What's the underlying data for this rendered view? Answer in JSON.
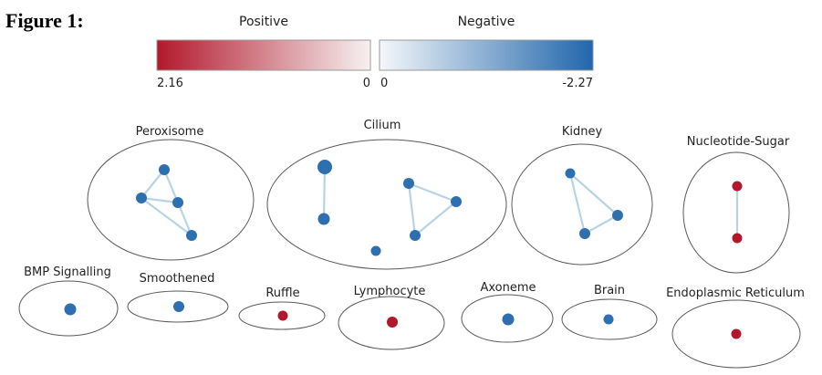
{
  "figure_title": "Figure 1:",
  "legend": {
    "positive": {
      "title": "Positive",
      "max_label": "2.16",
      "min_label": "0",
      "color_strong": "#b2182b",
      "color_weak": "#f7f1f1"
    },
    "negative": {
      "title": "Negative",
      "min_label": "0",
      "max_label": "-2.27",
      "color_weak": "#f4f7fa",
      "color_strong": "#2166ac"
    }
  },
  "colors": {
    "positive_node": "#b2182b",
    "negative_node": "#2e6fb0",
    "edge": "#b6d4e4",
    "ellipse_stroke": "#5a5a5a"
  },
  "groups": [
    {
      "id": "peroxisome",
      "label": "Peroxisome",
      "node_count": 4,
      "edge_count": 5,
      "sign": "negative"
    },
    {
      "id": "cilium",
      "label": "Cilium",
      "node_count": 6,
      "edge_count": 4,
      "sign": "negative"
    },
    {
      "id": "kidney",
      "label": "Kidney",
      "node_count": 3,
      "edge_count": 3,
      "sign": "negative"
    },
    {
      "id": "nucleotide-sugar",
      "label": "Nucleotide-Sugar",
      "node_count": 2,
      "edge_count": 1,
      "sign": "positive"
    },
    {
      "id": "bmp-signalling",
      "label": "BMP Signalling",
      "node_count": 1,
      "edge_count": 0,
      "sign": "negative"
    },
    {
      "id": "smoothened",
      "label": "Smoothened",
      "node_count": 1,
      "edge_count": 0,
      "sign": "negative"
    },
    {
      "id": "ruffle",
      "label": "Ruffle",
      "node_count": 1,
      "edge_count": 0,
      "sign": "positive"
    },
    {
      "id": "lymphocyte",
      "label": "Lymphocyte",
      "node_count": 1,
      "edge_count": 0,
      "sign": "positive"
    },
    {
      "id": "axoneme",
      "label": "Axoneme",
      "node_count": 1,
      "edge_count": 0,
      "sign": "negative"
    },
    {
      "id": "brain",
      "label": "Brain",
      "node_count": 1,
      "edge_count": 0,
      "sign": "negative"
    },
    {
      "id": "endoplasmic-reticulum",
      "label": "Endoplasmic Reticulum",
      "node_count": 1,
      "edge_count": 0,
      "sign": "positive"
    }
  ]
}
